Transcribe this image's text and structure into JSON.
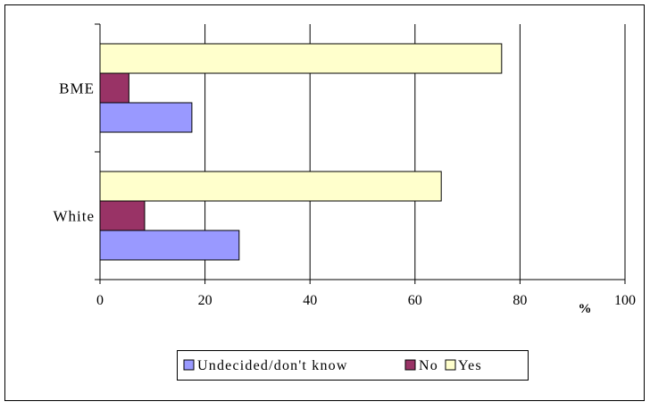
{
  "chart_data": {
    "type": "bar",
    "orientation": "horizontal",
    "categories": [
      "BME",
      "White"
    ],
    "series": [
      {
        "name": "Undecided/don't know",
        "color": "#9999ff",
        "values": [
          17.5,
          26.5
        ]
      },
      {
        "name": "No",
        "color": "#993366",
        "values": [
          5.5,
          8.5
        ]
      },
      {
        "name": "Yes",
        "color": "#ffffcc",
        "values": [
          76.5,
          65
        ]
      }
    ],
    "xlim": [
      0,
      100
    ],
    "xticks": [
      0,
      20,
      40,
      60,
      80,
      100
    ],
    "xlabel": "%",
    "grid": true,
    "legend": "bottom"
  }
}
